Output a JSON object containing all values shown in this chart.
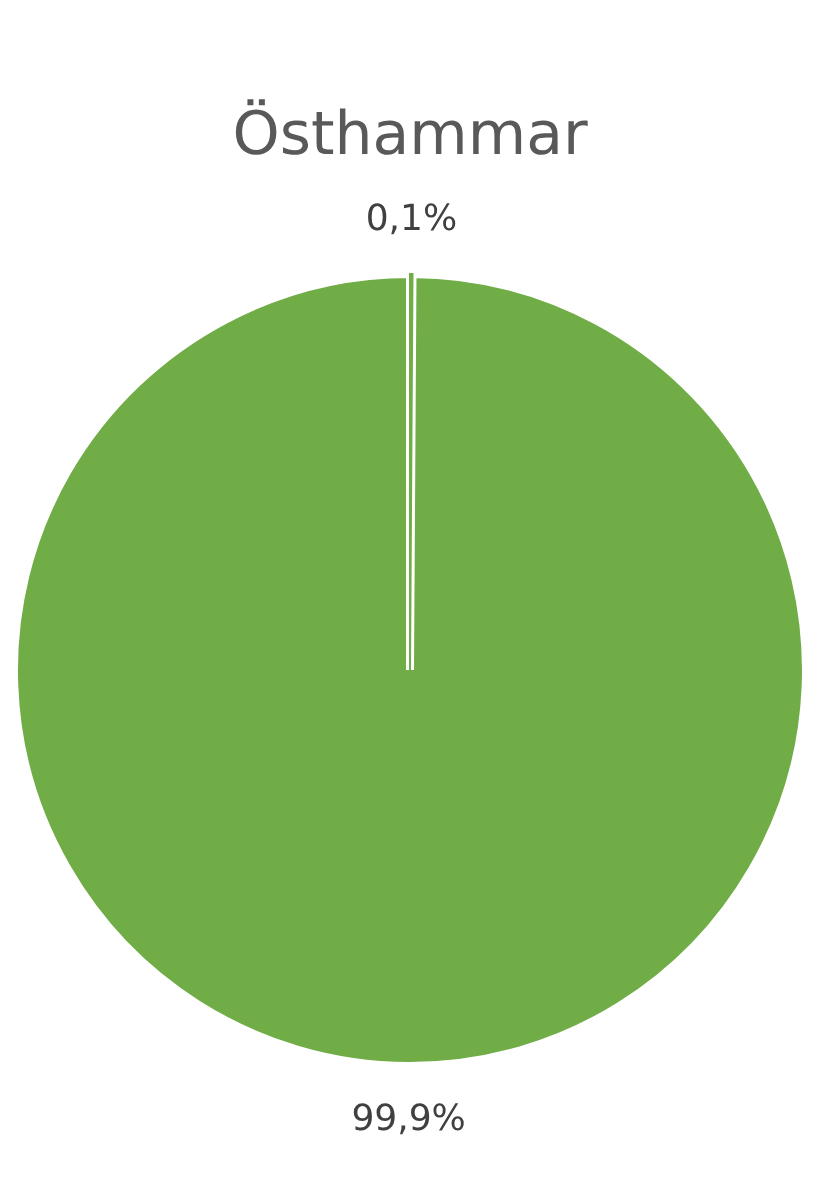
{
  "chart_data": {
    "type": "pie",
    "title": "Östhammar",
    "categories": [
      null,
      null
    ],
    "values": [
      0.1,
      99.9
    ],
    "colors": [
      "#70ad47",
      "#70ad47"
    ],
    "value_labels": [
      "0,1%",
      "99,9%"
    ]
  }
}
